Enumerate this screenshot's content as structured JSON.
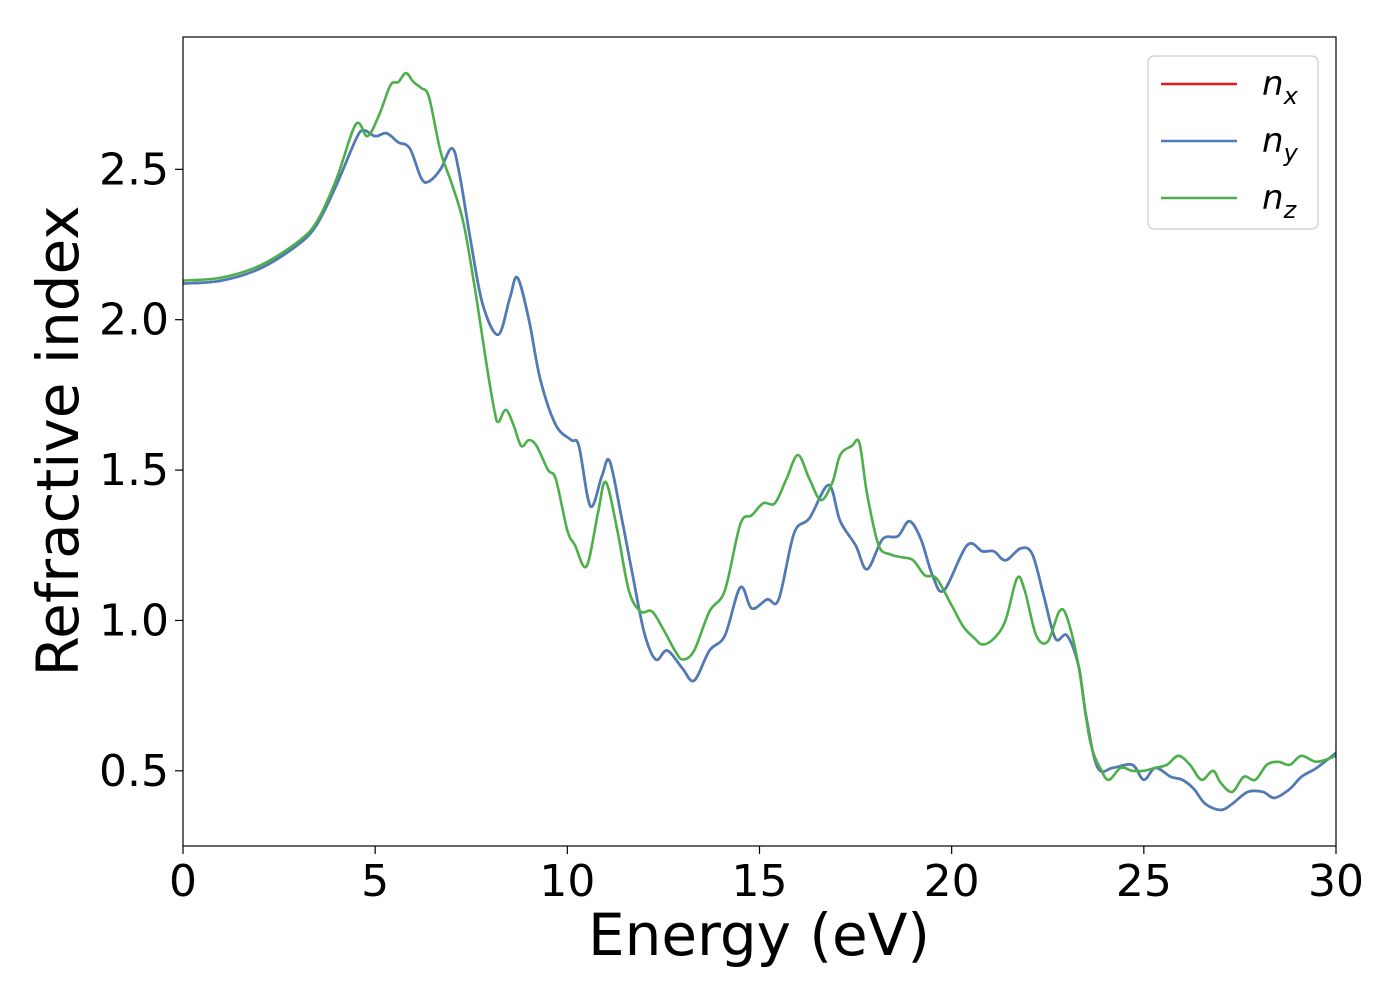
{
  "chart_data": {
    "type": "line",
    "xlabel": "Energy (eV)",
    "ylabel": "Refractive index",
    "xlim": [
      0,
      30
    ],
    "ylim": [
      0.25,
      2.94
    ],
    "xticks": [
      0,
      5,
      10,
      15,
      20,
      25,
      30
    ],
    "xtick_labels": [
      "0",
      "5",
      "10",
      "15",
      "20",
      "25",
      "30"
    ],
    "yticks": [
      0.5,
      1.0,
      1.5,
      2.0,
      2.5
    ],
    "ytick_labels": [
      "0.5",
      "1.0",
      "1.5",
      "2.0",
      "2.5"
    ],
    "grid": false,
    "legend": "top-right",
    "series": [
      {
        "name": "n",
        "sub": "x",
        "color": "#e41a1c",
        "points": [
          [
            0,
            2.12
          ],
          [
            1,
            2.13
          ],
          [
            2,
            2.17
          ],
          [
            3,
            2.25
          ],
          [
            3.5,
            2.32
          ],
          [
            4,
            2.45
          ],
          [
            4.5,
            2.6
          ],
          [
            4.7,
            2.63
          ],
          [
            5,
            2.61
          ],
          [
            5.3,
            2.62
          ],
          [
            5.6,
            2.59
          ],
          [
            5.9,
            2.57
          ],
          [
            6.2,
            2.47
          ],
          [
            6.4,
            2.46
          ],
          [
            6.7,
            2.5
          ],
          [
            7,
            2.57
          ],
          [
            7.2,
            2.48
          ],
          [
            7.5,
            2.25
          ],
          [
            7.8,
            2.05
          ],
          [
            8.2,
            1.95
          ],
          [
            8.5,
            2.07
          ],
          [
            8.7,
            2.14
          ],
          [
            9,
            2.0
          ],
          [
            9.3,
            1.8
          ],
          [
            9.7,
            1.65
          ],
          [
            10.1,
            1.6
          ],
          [
            10.3,
            1.58
          ],
          [
            10.6,
            1.38
          ],
          [
            10.9,
            1.48
          ],
          [
            11.1,
            1.53
          ],
          [
            11.4,
            1.35
          ],
          [
            11.7,
            1.15
          ],
          [
            12,
            0.96
          ],
          [
            12.3,
            0.87
          ],
          [
            12.6,
            0.9
          ],
          [
            13,
            0.84
          ],
          [
            13.3,
            0.8
          ],
          [
            13.7,
            0.9
          ],
          [
            14.1,
            0.95
          ],
          [
            14.5,
            1.11
          ],
          [
            14.8,
            1.04
          ],
          [
            15.2,
            1.07
          ],
          [
            15.5,
            1.07
          ],
          [
            15.9,
            1.29
          ],
          [
            16.3,
            1.34
          ],
          [
            16.8,
            1.45
          ],
          [
            17.1,
            1.33
          ],
          [
            17.5,
            1.25
          ],
          [
            17.8,
            1.17
          ],
          [
            18.2,
            1.27
          ],
          [
            18.6,
            1.28
          ],
          [
            18.9,
            1.33
          ],
          [
            19.2,
            1.27
          ],
          [
            19.5,
            1.15
          ],
          [
            19.8,
            1.1
          ],
          [
            20.4,
            1.25
          ],
          [
            20.8,
            1.23
          ],
          [
            21.1,
            1.23
          ],
          [
            21.4,
            1.2
          ],
          [
            21.8,
            1.24
          ],
          [
            22.1,
            1.22
          ],
          [
            22.4,
            1.08
          ],
          [
            22.7,
            0.94
          ],
          [
            23,
            0.95
          ],
          [
            23.3,
            0.85
          ],
          [
            23.5,
            0.68
          ],
          [
            23.8,
            0.51
          ],
          [
            24.2,
            0.51
          ],
          [
            24.7,
            0.52
          ],
          [
            25,
            0.47
          ],
          [
            25.3,
            0.51
          ],
          [
            25.7,
            0.48
          ],
          [
            26,
            0.47
          ],
          [
            26.3,
            0.44
          ],
          [
            26.6,
            0.39
          ],
          [
            27,
            0.37
          ],
          [
            27.3,
            0.39
          ],
          [
            27.7,
            0.43
          ],
          [
            28.1,
            0.43
          ],
          [
            28.4,
            0.41
          ],
          [
            28.8,
            0.44
          ],
          [
            29.1,
            0.48
          ],
          [
            29.5,
            0.51
          ],
          [
            30,
            0.56
          ]
        ]
      },
      {
        "name": "n",
        "sub": "y",
        "color": "#4a7ebb",
        "points": [
          [
            0,
            2.12
          ],
          [
            1,
            2.13
          ],
          [
            2,
            2.17
          ],
          [
            3,
            2.25
          ],
          [
            3.5,
            2.32
          ],
          [
            4,
            2.45
          ],
          [
            4.5,
            2.6
          ],
          [
            4.7,
            2.63
          ],
          [
            5,
            2.61
          ],
          [
            5.3,
            2.62
          ],
          [
            5.6,
            2.59
          ],
          [
            5.9,
            2.57
          ],
          [
            6.2,
            2.47
          ],
          [
            6.4,
            2.46
          ],
          [
            6.7,
            2.5
          ],
          [
            7,
            2.57
          ],
          [
            7.2,
            2.48
          ],
          [
            7.5,
            2.25
          ],
          [
            7.8,
            2.05
          ],
          [
            8.2,
            1.95
          ],
          [
            8.5,
            2.07
          ],
          [
            8.7,
            2.14
          ],
          [
            9,
            2.0
          ],
          [
            9.3,
            1.8
          ],
          [
            9.7,
            1.65
          ],
          [
            10.1,
            1.6
          ],
          [
            10.3,
            1.58
          ],
          [
            10.6,
            1.38
          ],
          [
            10.9,
            1.48
          ],
          [
            11.1,
            1.53
          ],
          [
            11.4,
            1.35
          ],
          [
            11.7,
            1.15
          ],
          [
            12,
            0.96
          ],
          [
            12.3,
            0.87
          ],
          [
            12.6,
            0.9
          ],
          [
            13,
            0.84
          ],
          [
            13.3,
            0.8
          ],
          [
            13.7,
            0.9
          ],
          [
            14.1,
            0.95
          ],
          [
            14.5,
            1.11
          ],
          [
            14.8,
            1.04
          ],
          [
            15.2,
            1.07
          ],
          [
            15.5,
            1.07
          ],
          [
            15.9,
            1.29
          ],
          [
            16.3,
            1.34
          ],
          [
            16.8,
            1.45
          ],
          [
            17.1,
            1.33
          ],
          [
            17.5,
            1.25
          ],
          [
            17.8,
            1.17
          ],
          [
            18.2,
            1.27
          ],
          [
            18.6,
            1.28
          ],
          [
            18.9,
            1.33
          ],
          [
            19.2,
            1.27
          ],
          [
            19.5,
            1.15
          ],
          [
            19.8,
            1.1
          ],
          [
            20.4,
            1.25
          ],
          [
            20.8,
            1.23
          ],
          [
            21.1,
            1.23
          ],
          [
            21.4,
            1.2
          ],
          [
            21.8,
            1.24
          ],
          [
            22.1,
            1.22
          ],
          [
            22.4,
            1.08
          ],
          [
            22.7,
            0.94
          ],
          [
            23,
            0.95
          ],
          [
            23.3,
            0.85
          ],
          [
            23.5,
            0.68
          ],
          [
            23.8,
            0.51
          ],
          [
            24.2,
            0.51
          ],
          [
            24.7,
            0.52
          ],
          [
            25,
            0.47
          ],
          [
            25.3,
            0.51
          ],
          [
            25.7,
            0.48
          ],
          [
            26,
            0.47
          ],
          [
            26.3,
            0.44
          ],
          [
            26.6,
            0.39
          ],
          [
            27,
            0.37
          ],
          [
            27.3,
            0.39
          ],
          [
            27.7,
            0.43
          ],
          [
            28.1,
            0.43
          ],
          [
            28.4,
            0.41
          ],
          [
            28.8,
            0.44
          ],
          [
            29.1,
            0.48
          ],
          [
            29.5,
            0.51
          ],
          [
            30,
            0.56
          ]
        ]
      },
      {
        "name": "n",
        "sub": "z",
        "color": "#4daf4a",
        "points": [
          [
            0,
            2.13
          ],
          [
            1,
            2.14
          ],
          [
            2,
            2.18
          ],
          [
            3,
            2.26
          ],
          [
            3.5,
            2.33
          ],
          [
            4,
            2.47
          ],
          [
            4.5,
            2.65
          ],
          [
            4.8,
            2.61
          ],
          [
            5.1,
            2.68
          ],
          [
            5.4,
            2.78
          ],
          [
            5.6,
            2.79
          ],
          [
            5.8,
            2.82
          ],
          [
            6,
            2.79
          ],
          [
            6.2,
            2.77
          ],
          [
            6.4,
            2.74
          ],
          [
            6.7,
            2.56
          ],
          [
            7,
            2.45
          ],
          [
            7.3,
            2.32
          ],
          [
            7.6,
            2.1
          ],
          [
            7.9,
            1.85
          ],
          [
            8.1,
            1.7
          ],
          [
            8.2,
            1.66
          ],
          [
            8.4,
            1.7
          ],
          [
            8.6,
            1.65
          ],
          [
            8.8,
            1.58
          ],
          [
            9,
            1.6
          ],
          [
            9.2,
            1.58
          ],
          [
            9.5,
            1.5
          ],
          [
            9.7,
            1.47
          ],
          [
            10,
            1.3
          ],
          [
            10.2,
            1.25
          ],
          [
            10.5,
            1.18
          ],
          [
            10.8,
            1.36
          ],
          [
            11,
            1.46
          ],
          [
            11.3,
            1.3
          ],
          [
            11.6,
            1.1
          ],
          [
            11.9,
            1.03
          ],
          [
            12.2,
            1.03
          ],
          [
            12.5,
            0.97
          ],
          [
            12.8,
            0.9
          ],
          [
            13,
            0.87
          ],
          [
            13.3,
            0.9
          ],
          [
            13.7,
            1.03
          ],
          [
            14.1,
            1.1
          ],
          [
            14.5,
            1.32
          ],
          [
            14.8,
            1.35
          ],
          [
            15.1,
            1.39
          ],
          [
            15.4,
            1.39
          ],
          [
            15.7,
            1.47
          ],
          [
            16,
            1.55
          ],
          [
            16.3,
            1.47
          ],
          [
            16.6,
            1.4
          ],
          [
            16.9,
            1.46
          ],
          [
            17.1,
            1.55
          ],
          [
            17.4,
            1.58
          ],
          [
            17.6,
            1.59
          ],
          [
            17.8,
            1.42
          ],
          [
            18.1,
            1.25
          ],
          [
            18.4,
            1.22
          ],
          [
            18.7,
            1.21
          ],
          [
            19,
            1.2
          ],
          [
            19.3,
            1.15
          ],
          [
            19.6,
            1.14
          ],
          [
            20,
            1.05
          ],
          [
            20.3,
            0.98
          ],
          [
            20.6,
            0.94
          ],
          [
            20.8,
            0.92
          ],
          [
            21.1,
            0.94
          ],
          [
            21.4,
            1.0
          ],
          [
            21.7,
            1.14
          ],
          [
            21.9,
            1.1
          ],
          [
            22.2,
            0.95
          ],
          [
            22.5,
            0.93
          ],
          [
            22.8,
            1.03
          ],
          [
            23,
            1.01
          ],
          [
            23.3,
            0.85
          ],
          [
            23.6,
            0.6
          ],
          [
            23.9,
            0.5
          ],
          [
            24.1,
            0.47
          ],
          [
            24.4,
            0.51
          ],
          [
            24.7,
            0.5
          ],
          [
            25,
            0.5
          ],
          [
            25.3,
            0.51
          ],
          [
            25.6,
            0.52
          ],
          [
            25.9,
            0.55
          ],
          [
            26.2,
            0.52
          ],
          [
            26.5,
            0.47
          ],
          [
            26.8,
            0.5
          ],
          [
            27,
            0.46
          ],
          [
            27.3,
            0.43
          ],
          [
            27.6,
            0.48
          ],
          [
            27.9,
            0.47
          ],
          [
            28.2,
            0.52
          ],
          [
            28.5,
            0.53
          ],
          [
            28.8,
            0.52
          ],
          [
            29.1,
            0.55
          ],
          [
            29.5,
            0.53
          ],
          [
            30,
            0.55
          ]
        ]
      }
    ]
  }
}
